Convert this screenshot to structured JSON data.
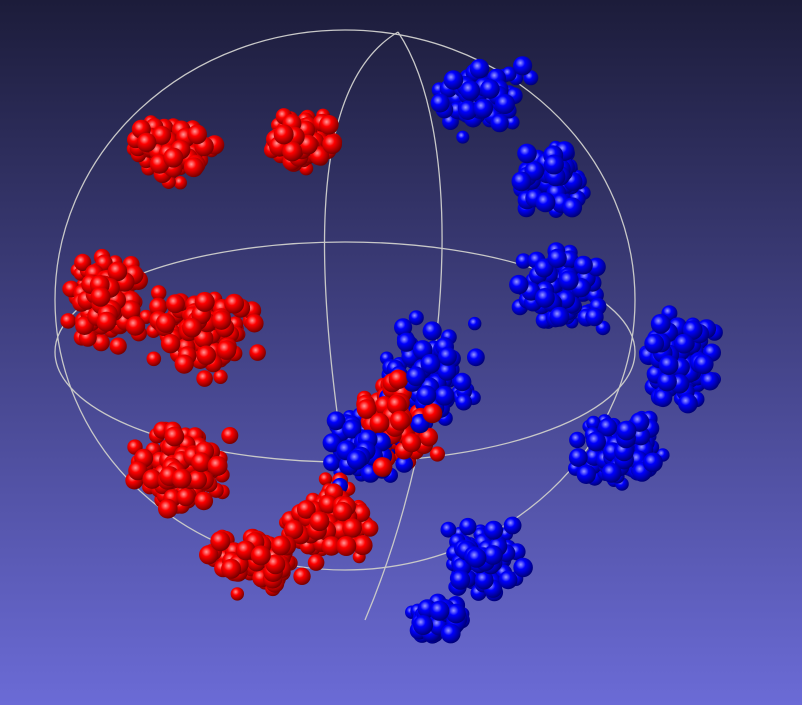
{
  "viewer": {
    "background": {
      "top_color": "#1c1c3a",
      "bottom_color": "#6b6bd6"
    },
    "trackball_color": "#c8c8c8",
    "point_clouds": [
      {
        "name": "red-cluster",
        "color": "#ff0000"
      },
      {
        "name": "blue-cluster",
        "color": "#0000ff"
      }
    ]
  }
}
